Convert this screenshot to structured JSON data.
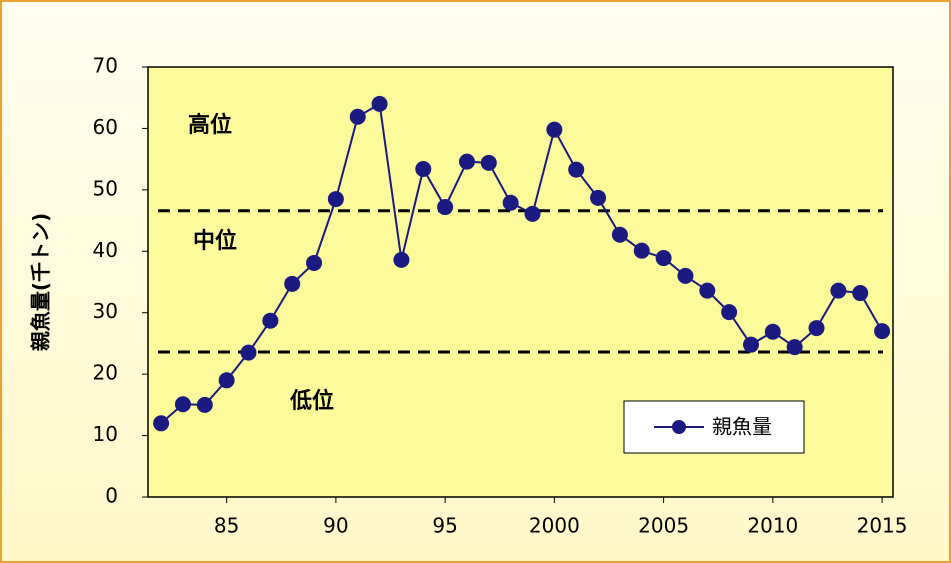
{
  "chart_data": {
    "type": "line",
    "y_label": "親魚量(千トン)",
    "x": [
      1982,
      1983,
      1984,
      1985,
      1986,
      1987,
      1988,
      1989,
      1990,
      1991,
      1992,
      1993,
      1994,
      1995,
      1996,
      1997,
      1998,
      1999,
      2000,
      2001,
      2002,
      2003,
      2004,
      2005,
      2006,
      2007,
      2008,
      2009,
      2010,
      2011,
      2012,
      2013,
      2014,
      2015
    ],
    "series": [
      {
        "name": "親魚量",
        "color": "#1a1a80",
        "values": [
          12,
          15.1,
          15,
          19,
          23.5,
          28.7,
          34.7,
          38.1,
          48.5,
          61.9,
          64,
          38.6,
          53.4,
          47.2,
          54.6,
          54.4,
          47.9,
          46.1,
          59.8,
          53.3,
          48.7,
          42.7,
          40.1,
          38.9,
          36,
          33.6,
          30.1,
          24.8,
          26.9,
          24.4,
          27.5,
          33.6,
          33.2,
          27
        ]
      }
    ],
    "xlim": [
      1981.4,
      2015.5
    ],
    "xticks": [
      {
        "value": 1985,
        "label": "85"
      },
      {
        "value": 1990,
        "label": "90"
      },
      {
        "value": 1995,
        "label": "95"
      },
      2000,
      2005,
      2010,
      2015
    ],
    "ylim": [
      0,
      70
    ],
    "yticks": [
      0,
      10,
      20,
      30,
      40,
      50,
      60,
      70
    ],
    "reference_lines": [
      46.6,
      23.6
    ],
    "annotations": [
      "高位",
      "中位",
      "低位"
    ],
    "legend": "lower-right"
  }
}
